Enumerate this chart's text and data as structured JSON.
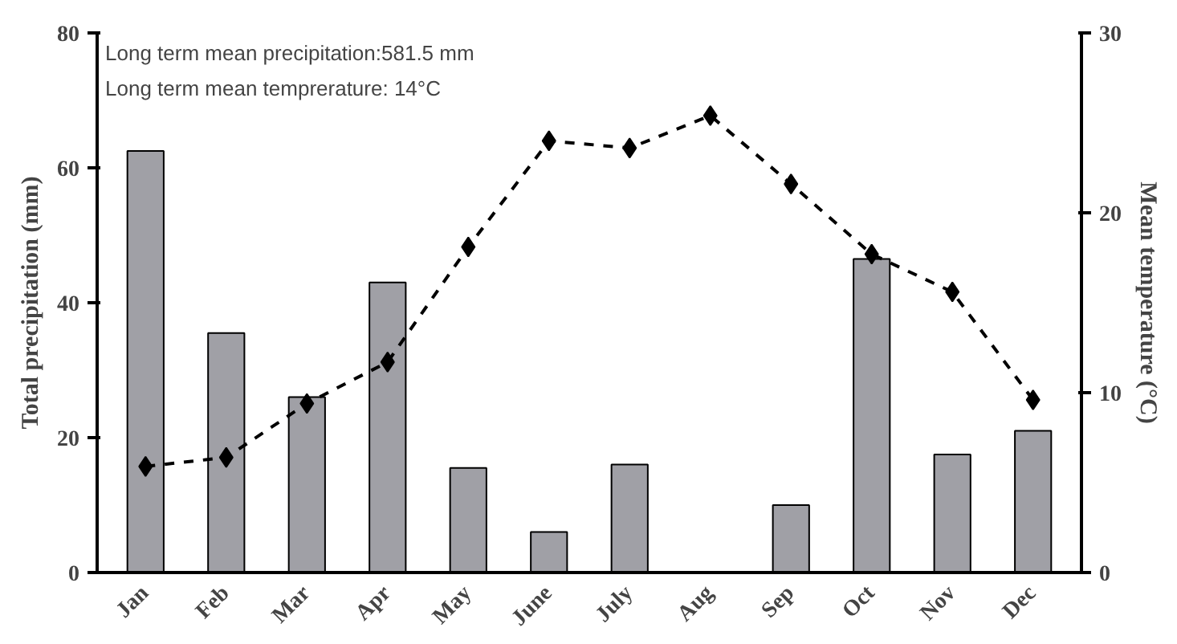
{
  "chart_data": {
    "type": "bar",
    "categories": [
      "Jan",
      "Feb",
      "Mar",
      "Apr",
      "May",
      "June",
      "July",
      "Aug",
      "Sep",
      "Oct",
      "Nov",
      "Dec"
    ],
    "series": [
      {
        "color": "#a0a0a6",
        "values": [
          62.5,
          35.5,
          26,
          43,
          15.5,
          6,
          16,
          null,
          10,
          46.5,
          17.5,
          21
        ]
      },
      {
        "type": "line",
        "axis": "y2",
        "color": "#000000",
        "marker": "diamond",
        "line_style": "dashed",
        "values": [
          5.9,
          6.4,
          9.4,
          11.7,
          18.1,
          24.0,
          23.6,
          25.4,
          21.6,
          17.7,
          15.6,
          9.6
        ]
      }
    ],
    "ylabel": "Total precipitation (mm)",
    "y2label": "Mean temperature (°C)",
    "ylim": [
      0,
      80
    ],
    "yticks": [
      0,
      20,
      40,
      60,
      80
    ],
    "y2lim": [
      0,
      30
    ],
    "y2ticks": [
      0,
      10,
      20,
      30
    ],
    "annotations": [
      "Long term mean precipitation:581.5 mm",
      "Long term mean temprerature: 14°C"
    ],
    "grid": false
  }
}
